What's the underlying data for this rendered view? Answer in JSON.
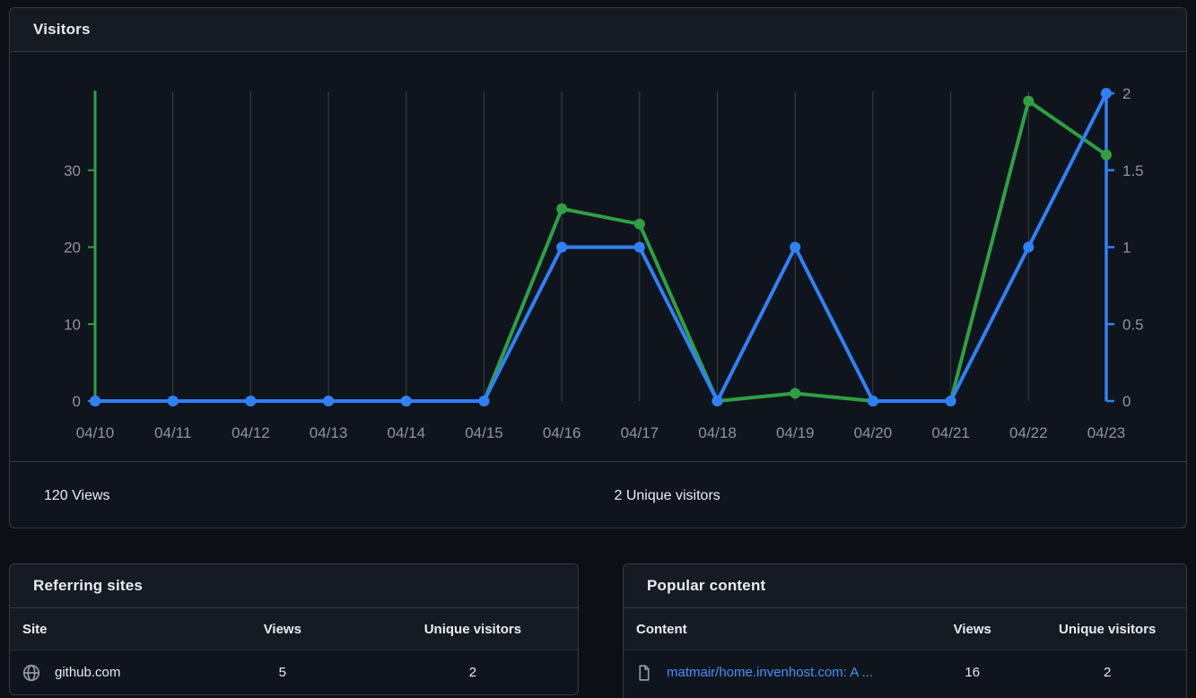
{
  "visitors": {
    "title": "Visitors",
    "total_views_label": "120 Views",
    "total_unique_label": "2 Unique visitors"
  },
  "chart_data": {
    "type": "line",
    "title": "Visitors",
    "categories": [
      "04/10",
      "04/11",
      "04/12",
      "04/13",
      "04/14",
      "04/15",
      "04/16",
      "04/17",
      "04/18",
      "04/19",
      "04/20",
      "04/21",
      "04/22",
      "04/23"
    ],
    "series": [
      {
        "name": "Views",
        "axis": "left",
        "color": "#2ea043",
        "values": [
          0,
          0,
          0,
          0,
          0,
          0,
          25,
          23,
          0,
          1,
          0,
          0,
          39,
          32
        ]
      },
      {
        "name": "Unique visitors",
        "axis": "right",
        "color": "#2f81f7",
        "values": [
          0,
          0,
          0,
          0,
          0,
          0,
          1,
          1,
          0,
          1,
          0,
          0,
          1,
          2
        ]
      }
    ],
    "left_axis": {
      "ticks": [
        0,
        10,
        20,
        30
      ],
      "range": [
        0,
        40
      ],
      "color": "#2ea043",
      "tick_label_color": "#8d949e"
    },
    "right_axis": {
      "ticks": [
        0,
        0.5,
        1,
        1.5,
        2
      ],
      "range": [
        0,
        2
      ],
      "color": "#2f81f7",
      "tick_label_color": "#8d949e"
    },
    "grid": "vertical",
    "gridline_color": "#39404a",
    "legend": "none",
    "totals": {
      "views": "120 Views",
      "unique_visitors": "2 Unique visitors"
    }
  },
  "referring": {
    "title": "Referring sites",
    "headers": [
      "Site",
      "Views",
      "Unique visitors"
    ],
    "rows": [
      {
        "icon": "globe",
        "site": "github.com",
        "views": "5",
        "unique": "2"
      }
    ]
  },
  "popular": {
    "title": "Popular content",
    "headers": [
      "Content",
      "Views",
      "Unique visitors"
    ],
    "rows": [
      {
        "icon": "file",
        "content": "matmair/home.invenhost.com: A ...",
        "views": "16",
        "unique": "2"
      }
    ]
  },
  "colors": {
    "views_green": "#2ea043",
    "unique_blue": "#2f81f7",
    "link_blue": "#4493f8",
    "muted_text": "#8d949e"
  }
}
